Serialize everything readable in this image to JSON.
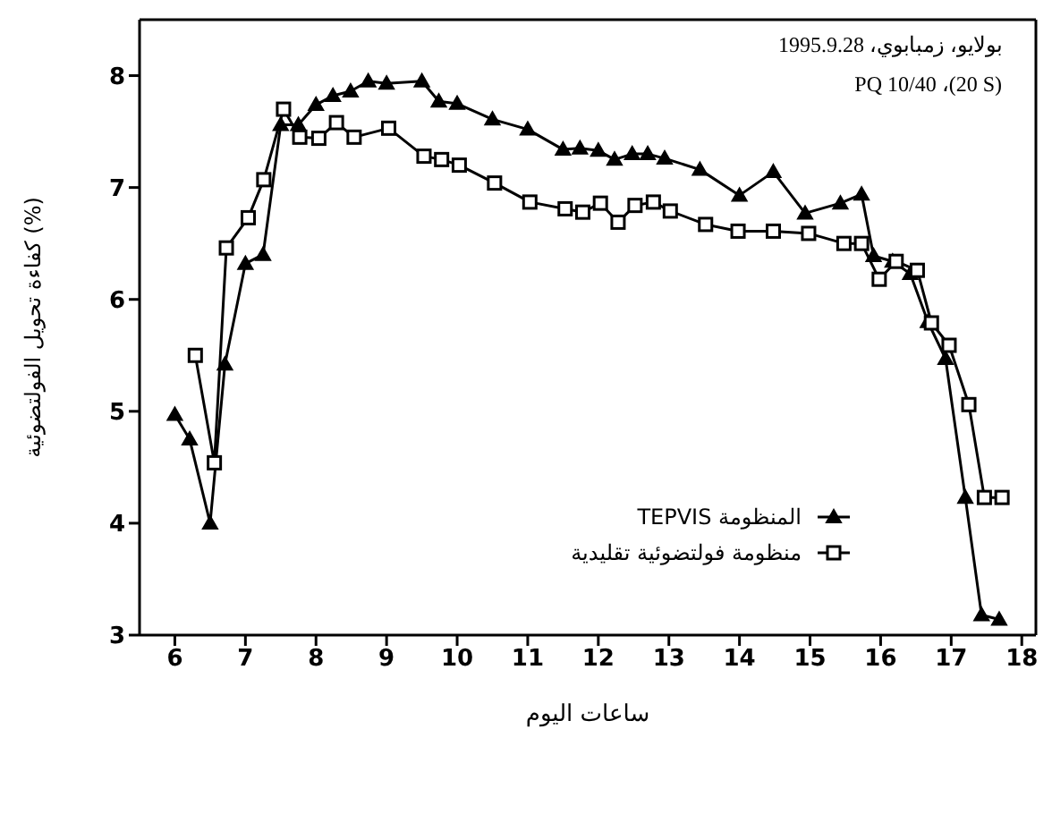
{
  "chart_data": {
    "type": "line",
    "xlabel": "ساعات اليوم",
    "ylabel": "كفاءة تحويل الفولتضوئية (%)",
    "annotations": [
      "بولايو، زمبابوي، 1995.9.28",
      "PQ 10/40 ،(20 S)"
    ],
    "xlim": [
      5.5,
      18.2
    ],
    "ylim": [
      3,
      8.5
    ],
    "xticks": [
      6,
      7,
      8,
      9,
      10,
      11,
      12,
      13,
      14,
      15,
      16,
      17,
      18
    ],
    "yticks": [
      3,
      4,
      5,
      6,
      7,
      8
    ],
    "grid": false,
    "legend": "right",
    "line_style": "solid",
    "series": [
      {
        "name": "المنظومة TEPVIS",
        "color": "#000000",
        "marker": "triangle",
        "x": [
          6.0,
          6.21,
          6.5,
          6.71,
          7.0,
          7.25,
          7.5,
          7.75,
          8.0,
          8.24,
          8.49,
          8.74,
          9.0,
          9.5,
          9.74,
          10.0,
          10.5,
          11.0,
          11.5,
          11.74,
          12.0,
          12.23,
          12.48,
          12.7,
          12.94,
          13.44,
          14.0,
          14.48,
          14.93,
          15.43,
          15.73,
          15.9,
          16.17,
          16.42,
          16.67,
          16.92,
          17.2,
          17.43,
          17.68
        ],
        "values": [
          4.97,
          4.75,
          4.0,
          5.42,
          6.32,
          6.4,
          7.56,
          7.56,
          7.74,
          7.82,
          7.86,
          7.95,
          7.93,
          7.95,
          7.77,
          7.75,
          7.61,
          7.52,
          7.34,
          7.35,
          7.33,
          7.25,
          7.3,
          7.3,
          7.26,
          7.16,
          6.93,
          7.14,
          6.77,
          6.86,
          6.94,
          6.39,
          6.34,
          6.23,
          5.8,
          5.47,
          4.23,
          3.18,
          3.14
        ]
      },
      {
        "name": "منظومة فولتضوئية تقليدية",
        "color": "#000000",
        "marker": "square",
        "x": [
          6.29,
          6.56,
          6.73,
          7.04,
          7.26,
          7.54,
          7.77,
          8.04,
          8.29,
          8.54,
          9.03,
          9.53,
          9.78,
          10.03,
          10.53,
          11.03,
          11.53,
          11.78,
          12.03,
          12.28,
          12.52,
          12.78,
          13.02,
          13.52,
          13.98,
          14.48,
          14.98,
          15.48,
          15.73,
          15.98,
          16.22,
          16.52,
          16.72,
          16.97,
          17.25,
          17.47,
          17.72
        ],
        "values": [
          5.5,
          4.54,
          6.46,
          6.73,
          7.07,
          7.7,
          7.45,
          7.44,
          7.58,
          7.45,
          7.53,
          7.28,
          7.25,
          7.2,
          7.04,
          6.87,
          6.81,
          6.78,
          6.86,
          6.69,
          6.84,
          6.87,
          6.79,
          6.67,
          6.61,
          6.61,
          6.59,
          6.5,
          6.5,
          6.18,
          6.34,
          6.26,
          5.79,
          5.59,
          5.06,
          4.23,
          4.23
        ]
      }
    ]
  }
}
